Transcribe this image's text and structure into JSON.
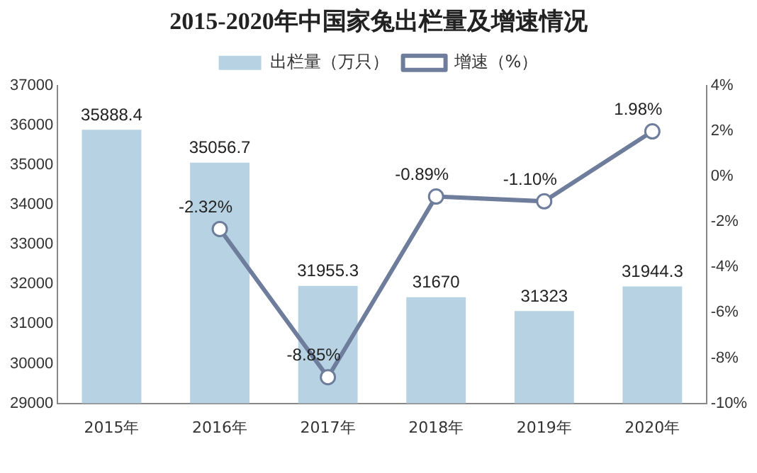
{
  "chart_data": {
    "type": "bar",
    "title": "2015-2020年中国家兔出栏量及增速情况",
    "categories": [
      "2015年",
      "2016年",
      "2017年",
      "2018年",
      "2019年",
      "2020年"
    ],
    "series": [
      {
        "name": "出栏量（万只）",
        "color": "#b7d3e3",
        "values": [
          35888.4,
          35056.7,
          31955.3,
          31670,
          31323,
          31944.3
        ],
        "value_labels": [
          "35888.4",
          "35056.7",
          "31955.3",
          "31670",
          "31323",
          "31944.3"
        ]
      },
      {
        "name": "增速（%）",
        "type": "line",
        "axis": "y2",
        "color": "#6e7d9c",
        "marker": "circle",
        "values": [
          null,
          -2.32,
          -8.85,
          -0.89,
          -1.1,
          1.98
        ],
        "value_labels": [
          null,
          "-2.32%",
          "-8.85%",
          "-0.89%",
          "-1.10%",
          "1.98%"
        ]
      }
    ],
    "ylim": [
      29000,
      37000
    ],
    "yticks": [
      29000,
      30000,
      31000,
      32000,
      33000,
      34000,
      35000,
      36000,
      37000
    ],
    "y2lim": [
      -10,
      4
    ],
    "y2ticks": [
      {
        "value": -10,
        "label": "-10%"
      },
      {
        "value": -8,
        "label": "-8%"
      },
      {
        "value": -6,
        "label": "-6%"
      },
      {
        "value": -4,
        "label": "-4%"
      },
      {
        "value": -2,
        "label": "-2%"
      },
      {
        "value": 0,
        "label": "0%"
      },
      {
        "value": 2,
        "label": "2%"
      },
      {
        "value": 4,
        "label": "4%"
      }
    ],
    "legend": "top",
    "grid": false
  }
}
